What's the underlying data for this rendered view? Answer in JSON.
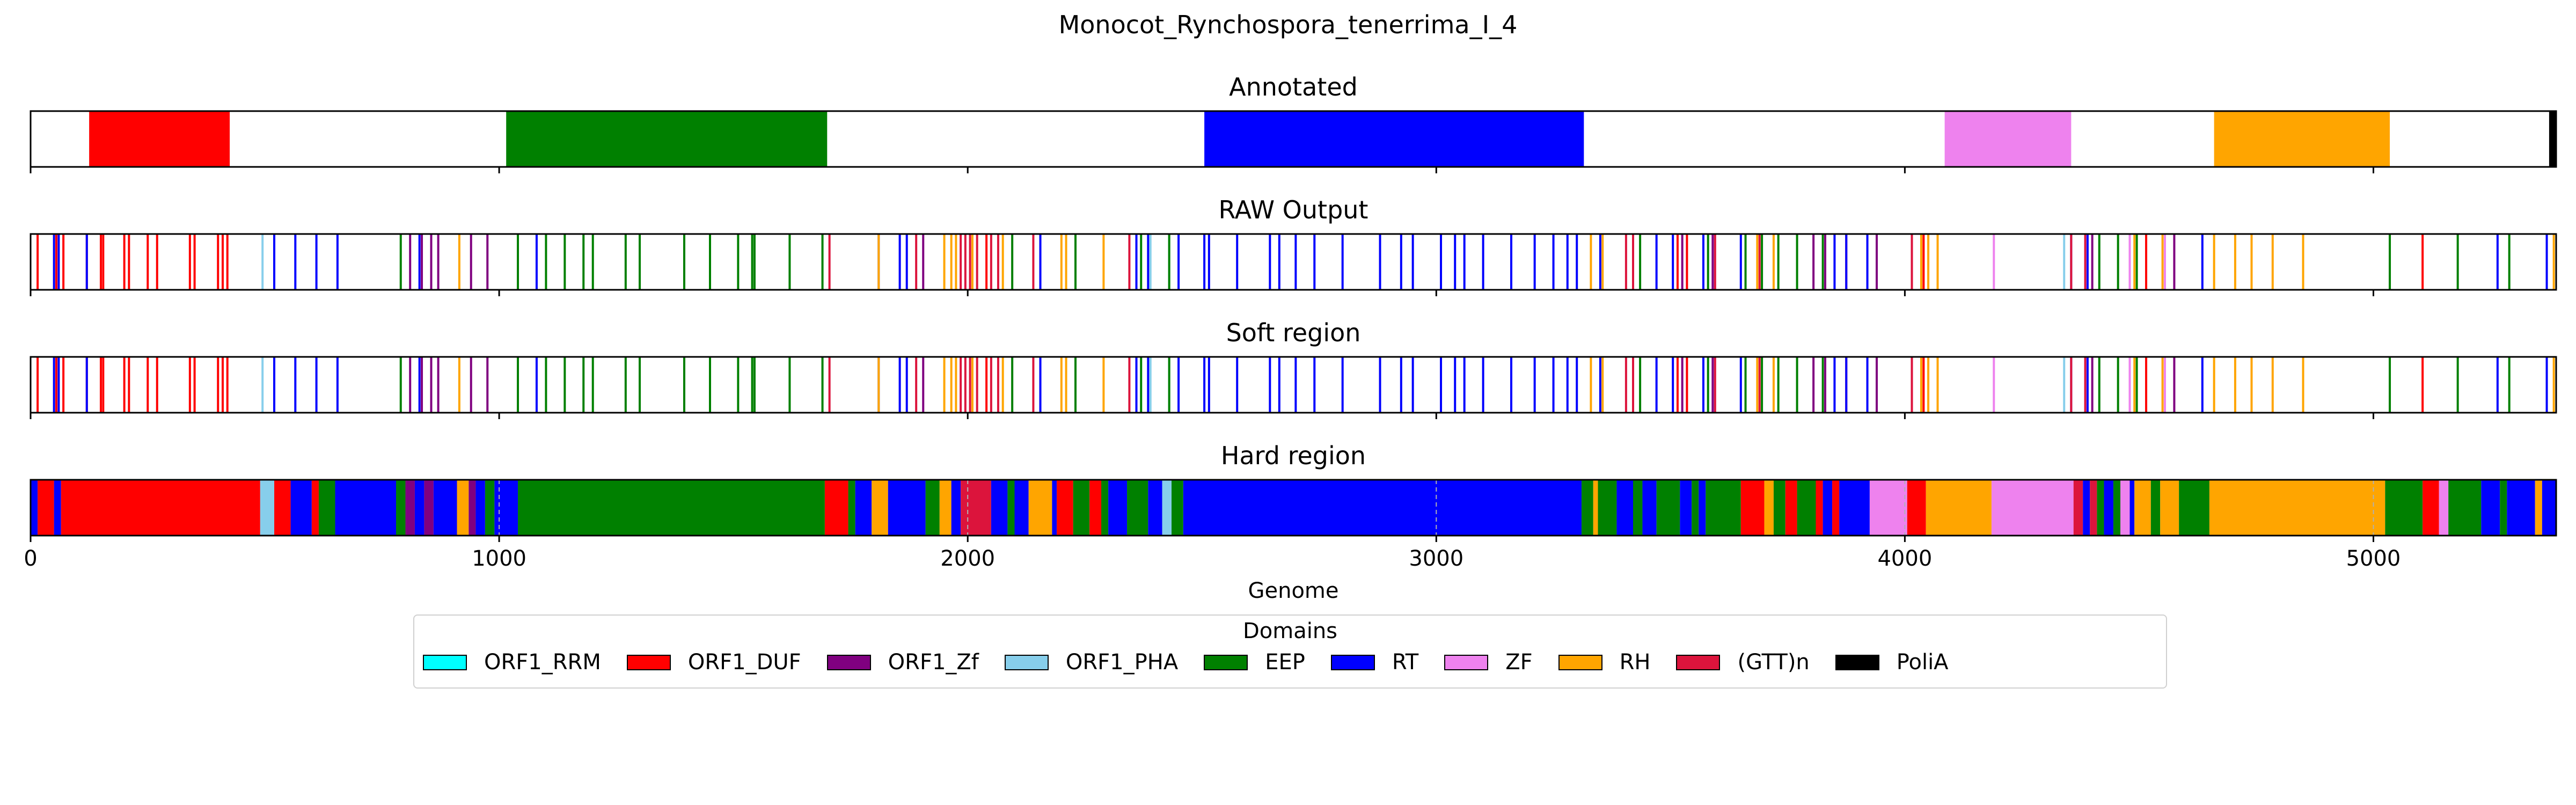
{
  "title": "Monocot_Rynchospora_tenerrima_I_4",
  "colors": {
    "ORF1_RRM": "#00ffff",
    "ORF1_DUF": "#ff0000",
    "ORF1_Zf": "#800080",
    "ORF1_PHA": "#87ceeb",
    "EEP": "#008000",
    "RT": "#0000ff",
    "ZF": "#ee82ee",
    "RH": "#ffa500",
    "(GTT)n": "#dc143c",
    "PoliA": "#000000"
  },
  "legend": {
    "title": "Domains",
    "items": [
      {
        "name": "ORF1_RRM",
        "color": "#00ffff"
      },
      {
        "name": "ORF1_DUF",
        "color": "#ff0000"
      },
      {
        "name": "ORF1_Zf",
        "color": "#800080"
      },
      {
        "name": "ORF1_PHA",
        "color": "#87ceeb"
      },
      {
        "name": "EEP",
        "color": "#008000"
      },
      {
        "name": "RT",
        "color": "#0000ff"
      },
      {
        "name": "ZF",
        "color": "#ee82ee"
      },
      {
        "name": "RH",
        "color": "#ffa500"
      },
      {
        "name": "(GTT)n",
        "color": "#dc143c"
      },
      {
        "name": "PoliA",
        "color": "#000000"
      }
    ]
  },
  "chart_data": {
    "type": "genome-track",
    "title": "Monocot_Rynchospora_tenerrima_I_4",
    "xlabel": "Genome",
    "xlim": [
      0,
      5390
    ],
    "xticks": [
      0,
      1000,
      2000,
      3000,
      4000,
      5000
    ],
    "grid": "x-dashed",
    "legend_placement": "bottom-center",
    "panels": [
      {
        "title": "Annotated",
        "segments": [
          {
            "domain": "ORF1_DUF",
            "start": 125,
            "end": 425
          },
          {
            "domain": "EEP",
            "start": 1015,
            "end": 1700
          },
          {
            "domain": "RT",
            "start": 2505,
            "end": 3315
          },
          {
            "domain": "ZF",
            "start": 4085,
            "end": 4355
          },
          {
            "domain": "RH",
            "start": 4660,
            "end": 5035
          },
          {
            "domain": "PoliA",
            "start": 5375,
            "end": 5390
          }
        ]
      },
      {
        "title": "RAW Output",
        "hits": [
          {
            "domain": "ORF1_DUF",
            "positions": [
              15,
              55,
              70,
              120,
              150,
              155,
              200,
              210,
              250,
              270,
              340,
              350,
              400,
              410,
              420,
              2040,
              3515,
              3875,
              3535,
              4040,
              4515,
              5105
            ]
          },
          {
            "domain": "ORF1_PHA",
            "positions": [
              495,
              2430,
              2390,
              4340
            ]
          },
          {
            "domain": "RT",
            "positions": [
              50,
              60,
              120,
              520,
              565,
              610,
              655,
              830,
              1080,
              1810,
              1855,
              1870,
              2155,
              2360,
              2385,
              2450,
              2505,
              2515,
              2575,
              2645,
              2665,
              2700,
              2740,
              2800,
              2880,
              2925,
              2950,
              3010,
              3040,
              3060,
              3100,
              3160,
              3210,
              3250,
              3280,
              3300,
              3350,
              3470,
              3505,
              3570,
              3590,
              3650,
              3850,
              3875,
              3920,
              4355,
              4390,
              4635,
              5265,
              5370
            ]
          },
          {
            "domain": "EEP",
            "positions": [
              790,
              1040,
              1100,
              1140,
              1180,
              1200,
              1270,
              1300,
              1395,
              1450,
              1510,
              1540,
              1545,
              1620,
              1690,
              2095,
              2230,
              2370,
              2430,
              3435,
              3580,
              3660,
              3695,
              3730,
              3770,
              3825,
              4415,
              4455,
              4495,
              5035,
              5180,
              5290
            ]
          },
          {
            "domain": "ORF1_Zf",
            "positions": [
              810,
              835,
              855,
              870,
              940,
              975,
              1905,
              3525,
              3590,
              3805,
              3830,
              3940,
              4400,
              4575
            ]
          },
          {
            "domain": "RH",
            "positions": [
              915,
              1810,
              1950,
              1965,
              1975,
              2010,
              2075,
              2200,
              2210,
              2290,
              3330,
              3355,
              3685,
              3720,
              4035,
              4050,
              4070,
              4490,
              4550,
              4660,
              4705,
              4740,
              4785,
              4850,
              5385
            ]
          },
          {
            "domain": "(GTT)n",
            "positions": [
              1705,
              1890,
              1985,
              1995,
              2005,
              2020,
              2050,
              2065,
              2140,
              2345,
              3405,
              3420,
              3595,
              3690,
              4015,
              4355,
              4385
            ]
          },
          {
            "domain": "ZF",
            "positions": [
              4190,
              4480,
              4555
            ]
          }
        ]
      },
      {
        "title": "Soft region",
        "hits": "same as RAW Output"
      },
      {
        "title": "Hard region",
        "segments": [
          {
            "domain": "RT",
            "start": 0,
            "end": 15
          },
          {
            "domain": "ORF1_DUF",
            "start": 15,
            "end": 50
          },
          {
            "domain": "RT",
            "start": 50,
            "end": 65
          },
          {
            "domain": "ORF1_DUF",
            "start": 65,
            "end": 490
          },
          {
            "domain": "ORF1_PHA",
            "start": 490,
            "end": 520
          },
          {
            "domain": "ORF1_DUF",
            "start": 520,
            "end": 555
          },
          {
            "domain": "RT",
            "start": 555,
            "end": 600
          },
          {
            "domain": "ORF1_DUF",
            "start": 600,
            "end": 615
          },
          {
            "domain": "EEP",
            "start": 615,
            "end": 650
          },
          {
            "domain": "RT",
            "start": 650,
            "end": 780
          },
          {
            "domain": "EEP",
            "start": 780,
            "end": 800
          },
          {
            "domain": "ORF1_Zf",
            "start": 800,
            "end": 820
          },
          {
            "domain": "RT",
            "start": 820,
            "end": 840
          },
          {
            "domain": "ORF1_Zf",
            "start": 840,
            "end": 860
          },
          {
            "domain": "RT",
            "start": 860,
            "end": 910
          },
          {
            "domain": "RH",
            "start": 910,
            "end": 935
          },
          {
            "domain": "ORF1_Zf",
            "start": 935,
            "end": 950
          },
          {
            "domain": "RT",
            "start": 950,
            "end": 970
          },
          {
            "domain": "EEP",
            "start": 970,
            "end": 990
          },
          {
            "domain": "RT",
            "start": 990,
            "end": 1040
          },
          {
            "domain": "EEP",
            "start": 1040,
            "end": 1695
          },
          {
            "domain": "ORF1_DUF",
            "start": 1695,
            "end": 1745
          },
          {
            "domain": "EEP",
            "start": 1745,
            "end": 1760
          },
          {
            "domain": "RT",
            "start": 1760,
            "end": 1795
          },
          {
            "domain": "RH",
            "start": 1795,
            "end": 1830
          },
          {
            "domain": "RT",
            "start": 1830,
            "end": 1910
          },
          {
            "domain": "EEP",
            "start": 1910,
            "end": 1940
          },
          {
            "domain": "RH",
            "start": 1940,
            "end": 1965
          },
          {
            "domain": "RT",
            "start": 1965,
            "end": 1985
          },
          {
            "domain": "(GTT)n",
            "start": 1985,
            "end": 2050
          },
          {
            "domain": "RT",
            "start": 2050,
            "end": 2085
          },
          {
            "domain": "EEP",
            "start": 2085,
            "end": 2100
          },
          {
            "domain": "RT",
            "start": 2100,
            "end": 2130
          },
          {
            "domain": "RH",
            "start": 2130,
            "end": 2180
          },
          {
            "domain": "RT",
            "start": 2180,
            "end": 2190
          },
          {
            "domain": "ORF1_DUF",
            "start": 2190,
            "end": 2225
          },
          {
            "domain": "EEP",
            "start": 2225,
            "end": 2260
          },
          {
            "domain": "ORF1_DUF",
            "start": 2260,
            "end": 2285
          },
          {
            "domain": "EEP",
            "start": 2285,
            "end": 2300
          },
          {
            "domain": "RT",
            "start": 2300,
            "end": 2340
          },
          {
            "domain": "EEP",
            "start": 2340,
            "end": 2385
          },
          {
            "domain": "RT",
            "start": 2385,
            "end": 2415
          },
          {
            "domain": "ORF1_PHA",
            "start": 2415,
            "end": 2435
          },
          {
            "domain": "EEP",
            "start": 2435,
            "end": 2460
          },
          {
            "domain": "RT",
            "start": 2460,
            "end": 3310
          },
          {
            "domain": "EEP",
            "start": 3310,
            "end": 3335
          },
          {
            "domain": "RH",
            "start": 3335,
            "end": 3345
          },
          {
            "domain": "EEP",
            "start": 3345,
            "end": 3385
          },
          {
            "domain": "RT",
            "start": 3385,
            "end": 3420
          },
          {
            "domain": "EEP",
            "start": 3420,
            "end": 3440
          },
          {
            "domain": "RT",
            "start": 3440,
            "end": 3470
          },
          {
            "domain": "EEP",
            "start": 3470,
            "end": 3520
          },
          {
            "domain": "RT",
            "start": 3520,
            "end": 3545
          },
          {
            "domain": "EEP",
            "start": 3545,
            "end": 3560
          },
          {
            "domain": "RT",
            "start": 3560,
            "end": 3575
          },
          {
            "domain": "EEP",
            "start": 3575,
            "end": 3650
          },
          {
            "domain": "ORF1_DUF",
            "start": 3650,
            "end": 3700
          },
          {
            "domain": "RH",
            "start": 3700,
            "end": 3720
          },
          {
            "domain": "EEP",
            "start": 3720,
            "end": 3745
          },
          {
            "domain": "ORF1_DUF",
            "start": 3745,
            "end": 3770
          },
          {
            "domain": "EEP",
            "start": 3770,
            "end": 3810
          },
          {
            "domain": "ORF1_DUF",
            "start": 3810,
            "end": 3825
          },
          {
            "domain": "RT",
            "start": 3825,
            "end": 3845
          },
          {
            "domain": "ORF1_DUF",
            "start": 3845,
            "end": 3860
          },
          {
            "domain": "RT",
            "start": 3860,
            "end": 3925
          },
          {
            "domain": "ZF",
            "start": 3925,
            "end": 4005
          },
          {
            "domain": "ORF1_DUF",
            "start": 4005,
            "end": 4045
          },
          {
            "domain": "RH",
            "start": 4045,
            "end": 4185
          },
          {
            "domain": "ZF",
            "start": 4185,
            "end": 4360
          },
          {
            "domain": "(GTT)n",
            "start": 4360,
            "end": 4380
          },
          {
            "domain": "RT",
            "start": 4380,
            "end": 4395
          },
          {
            "domain": "(GTT)n",
            "start": 4395,
            "end": 4410
          },
          {
            "domain": "EEP",
            "start": 4410,
            "end": 4425
          },
          {
            "domain": "RT",
            "start": 4425,
            "end": 4445
          },
          {
            "domain": "EEP",
            "start": 4445,
            "end": 4460
          },
          {
            "domain": "ZF",
            "start": 4460,
            "end": 4480
          },
          {
            "domain": "RT",
            "start": 4480,
            "end": 4490
          },
          {
            "domain": "RH",
            "start": 4490,
            "end": 4525
          },
          {
            "domain": "EEP",
            "start": 4525,
            "end": 4545
          },
          {
            "domain": "RH",
            "start": 4545,
            "end": 4585
          },
          {
            "domain": "EEP",
            "start": 4585,
            "end": 4650
          },
          {
            "domain": "RH",
            "start": 4650,
            "end": 5025
          },
          {
            "domain": "EEP",
            "start": 5025,
            "end": 5105
          },
          {
            "domain": "ORF1_DUF",
            "start": 5105,
            "end": 5140
          },
          {
            "domain": "ZF",
            "start": 5140,
            "end": 5160
          },
          {
            "domain": "EEP",
            "start": 5160,
            "end": 5230
          },
          {
            "domain": "RT",
            "start": 5230,
            "end": 5270
          },
          {
            "domain": "EEP",
            "start": 5270,
            "end": 5285
          },
          {
            "domain": "RT",
            "start": 5285,
            "end": 5345
          },
          {
            "domain": "RH",
            "start": 5345,
            "end": 5360
          },
          {
            "domain": "RT",
            "start": 5360,
            "end": 5390
          }
        ]
      }
    ]
  }
}
